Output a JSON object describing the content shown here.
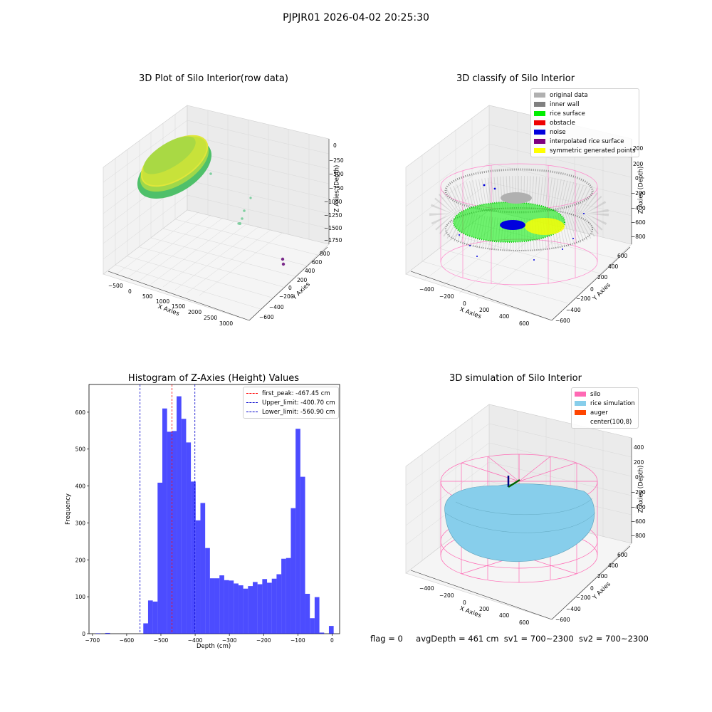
{
  "suptitle": "PJPJR01 2026-04-02 20:25:30",
  "panels": {
    "raw": {
      "title": "3D Plot of Silo Interior(row data)",
      "xlabel": "X Axies",
      "ylabel": "Y Axies",
      "zlabel": "Z Axies (Depth)",
      "xticks": [
        "−500",
        "0",
        "500",
        "1000",
        "1500",
        "2000",
        "2500",
        "3000"
      ],
      "yticks": [
        "−600",
        "−400",
        "−200",
        "0",
        "200",
        "400",
        "600",
        "800"
      ],
      "zticks": [
        "0",
        "−250",
        "−500",
        "−750",
        "−1000",
        "−1250",
        "−1500",
        "−1750"
      ]
    },
    "classify": {
      "title": "3D classify of Silo Interior",
      "xlabel": "X Axies",
      "ylabel": "Y Axies",
      "zlabel": "Z Axies (Depth)",
      "xticks": [
        "−400",
        "−200",
        "0",
        "200",
        "400",
        "600"
      ],
      "yticks": [
        "−600",
        "−400",
        "−200",
        "0",
        "200",
        "400",
        "600"
      ],
      "zticks": [
        "200",
        "0",
        "−200",
        "−400",
        "−600",
        "−800"
      ],
      "legend": [
        {
          "label": "original data",
          "color": "#b0b0b0"
        },
        {
          "label": "inner wall",
          "color": "#808080"
        },
        {
          "label": "rice surface",
          "color": "#00ee00"
        },
        {
          "label": "obstacle",
          "color": "#ee0000"
        },
        {
          "label": "noise",
          "color": "#0000dd"
        },
        {
          "label": "interpolated rice surface",
          "color": "#800080"
        },
        {
          "label": "symmetric generated points",
          "color": "#ffff00"
        }
      ]
    },
    "sim": {
      "title": "3D simulation of Silo Interior",
      "xlabel": "X Axies",
      "ylabel": "Y Axies",
      "zlabel": "Z Axies (Depth)",
      "xticks": [
        "−400",
        "−200",
        "0",
        "200",
        "400",
        "600"
      ],
      "yticks": [
        "−600",
        "−400",
        "−200",
        "0",
        "200",
        "400",
        "600"
      ],
      "zticks": [
        "400",
        "200",
        "0",
        "−200",
        "−400",
        "−600",
        "−800"
      ],
      "legend": [
        {
          "label": "silo",
          "color": "#ff69b4"
        },
        {
          "label": "rice simulation",
          "color": "#87ceeb"
        },
        {
          "label": "auger",
          "color": "#ff4500"
        },
        {
          "label": "center(100,8)",
          "color": ""
        }
      ]
    }
  },
  "footer": {
    "flag": "flag = 0",
    "avg": "avgDepth = 461 cm",
    "sv1": "sv1 = 700~2300",
    "sv2": "sv2 = 700~2300"
  },
  "chart_data": {
    "type": "bar",
    "title": "Histogram of Z-Axies (Height) Values",
    "xlabel": "Depth (cm)",
    "ylabel": "Frequency",
    "xlim": [
      -710,
      22
    ],
    "ylim": [
      0,
      675
    ],
    "xticks": [
      -700,
      -600,
      -500,
      -400,
      -300,
      -200,
      -100,
      0
    ],
    "xtick_labels": [
      "−700",
      "−600",
      "−500",
      "−400",
      "−300",
      "−200",
      "−100",
      "0"
    ],
    "yticks": [
      0,
      100,
      200,
      300,
      400,
      500,
      600
    ],
    "bar_color": "#0000ff",
    "bin_edges": [
      -690.4,
      -676.5,
      -662.6,
      -648.7,
      -634.8,
      -620.9,
      -607.0,
      -593.1,
      -579.2,
      -565.3,
      -551.4,
      -537.5,
      -523.6,
      -509.7,
      -495.8,
      -481.9,
      -468.0,
      -454.1,
      -440.2,
      -426.3,
      -412.4,
      -398.5,
      -384.6,
      -370.7,
      -356.8,
      -342.9,
      -329.0,
      -315.1,
      -301.2,
      -287.3,
      -273.4,
      -259.5,
      -245.6,
      -231.7,
      -217.8,
      -203.9,
      -190.0,
      -176.1,
      -162.2,
      -148.3,
      -134.4,
      -120.5,
      -106.6,
      -92.7,
      -78.8,
      -64.9,
      -51.0,
      -37.1,
      -23.2,
      -9.3,
      4.6
    ],
    "counts": [
      1,
      0,
      2,
      0,
      0,
      0,
      0,
      0,
      0,
      0,
      28,
      90,
      87,
      409,
      610,
      547,
      549,
      643,
      582,
      518,
      412,
      307,
      354,
      232,
      150,
      150,
      158,
      145,
      144,
      136,
      131,
      122,
      129,
      140,
      134,
      148,
      138,
      149,
      161,
      203,
      205,
      340,
      555,
      425,
      108,
      42,
      99,
      3,
      0,
      21
    ],
    "series": [
      {
        "name": "first_peak: -467.45 cm",
        "value": -467.45,
        "color": "#ff0000"
      },
      {
        "name": "Upper_limit: -400.70 cm",
        "value": -400.7,
        "color": "#0000cc"
      },
      {
        "name": "Lower_limit: -560.90 cm",
        "value": -560.9,
        "color": "#0000cc"
      }
    ]
  }
}
